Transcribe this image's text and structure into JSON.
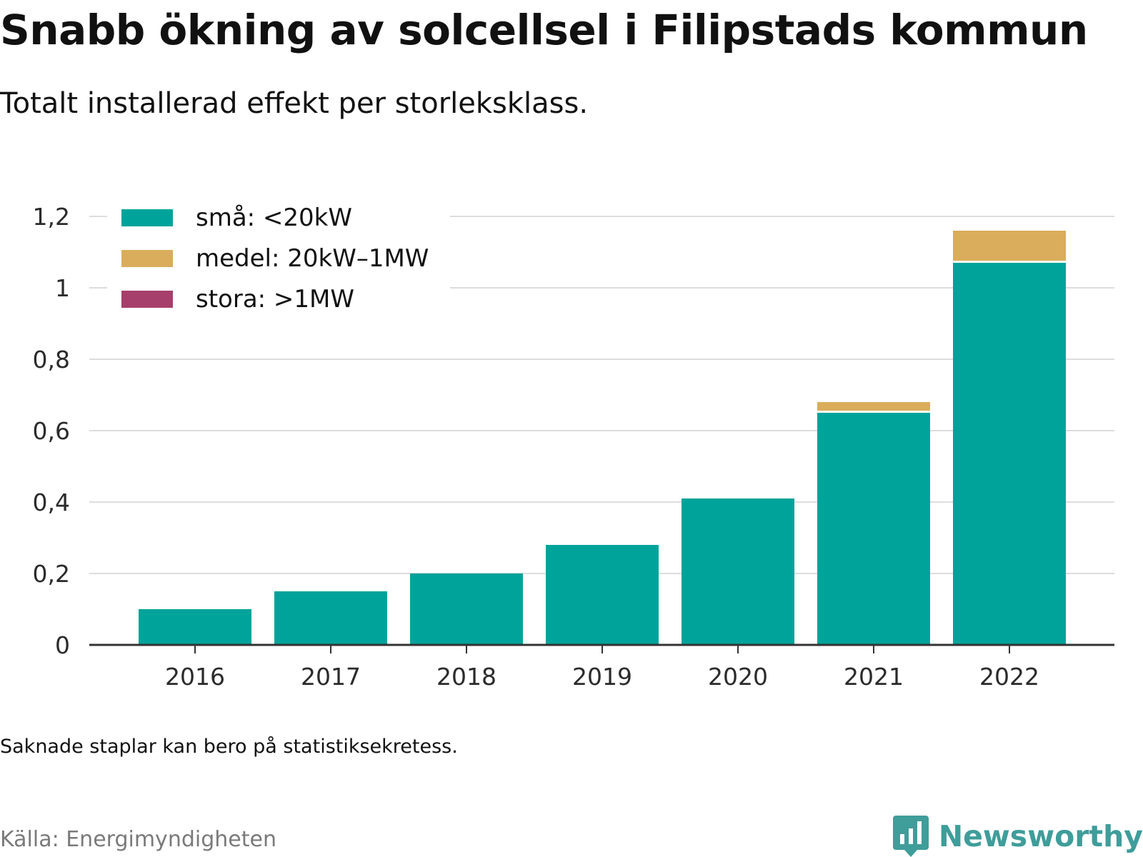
{
  "title": "Snabb ökning av solcellsel i Filipstads kommun",
  "subtitle": "Totalt installerad effekt per storleksklass.",
  "note": "Saknade staplar kan bero på statistiksekretess.",
  "source": "Källa: Energimyndigheten",
  "brand": {
    "name": "Newsworthy",
    "logo_icon": "newsworthy-bar-chart-icon",
    "color": "#3f9d9a"
  },
  "colors": {
    "small": "#00a39a",
    "medium": "#d9ad5b",
    "large": "#a63f6b",
    "grid": "#dddddd",
    "axis": "#333333"
  },
  "legend": {
    "placement": "top-left",
    "items": [
      {
        "label": "små: <20kW",
        "color": "#00a39a"
      },
      {
        "label": "medel: 20kW–1MW",
        "color": "#d9ad5b"
      },
      {
        "label": "stora: >1MW",
        "color": "#a63f6b"
      }
    ]
  },
  "chart_data": {
    "type": "bar",
    "stacked": true,
    "categories": [
      "2016",
      "2017",
      "2018",
      "2019",
      "2020",
      "2021",
      "2022"
    ],
    "series": [
      {
        "name": "små: <20kW",
        "color": "#00a39a",
        "values": [
          0.1,
          0.15,
          0.2,
          0.28,
          0.41,
          0.65,
          1.07
        ]
      },
      {
        "name": "medel: 20kW–1MW",
        "color": "#d9ad5b",
        "values": [
          0,
          0,
          0,
          0,
          0,
          0.03,
          0.09
        ]
      },
      {
        "name": "stora: >1MW",
        "color": "#a63f6b",
        "values": [
          0,
          0,
          0,
          0,
          0,
          0,
          0
        ]
      }
    ],
    "title": "Snabb ökning av solcellsel i Filipstads kommun",
    "subtitle": "Totalt installerad effekt per storleksklass.",
    "xlabel": "",
    "ylabel": "",
    "ylim": [
      0,
      1.2
    ],
    "yticks": [
      0,
      0.2,
      0.4,
      0.6,
      0.8,
      1,
      1.2
    ],
    "ytick_labels": [
      "0",
      "0,2",
      "0,4",
      "0,6",
      "0,8",
      "1",
      "1,2"
    ],
    "grid": true,
    "legend": "top-left"
  }
}
